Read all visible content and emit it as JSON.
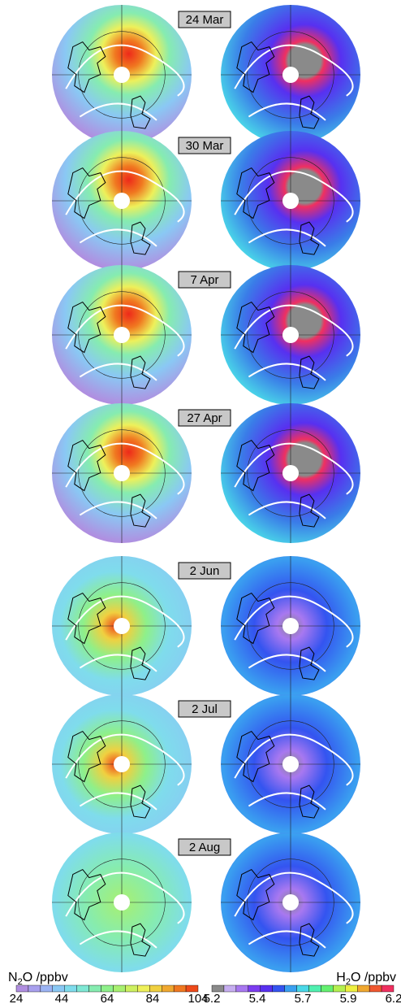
{
  "panels": [
    {
      "date": "24 Mar",
      "n2o_peak": "high",
      "h2o_peak": "high"
    },
    {
      "date": "30 Mar",
      "n2o_peak": "high",
      "h2o_peak": "high"
    },
    {
      "date": "7 Apr",
      "n2o_peak": "high",
      "h2o_peak": "high"
    },
    {
      "date": "27 Apr",
      "n2o_peak": "high",
      "h2o_peak": "high"
    },
    {
      "date": "2 Jun",
      "n2o_peak": "moderate",
      "h2o_peak": "low"
    },
    {
      "date": "2 Jul",
      "n2o_peak": "moderate",
      "h2o_peak": "low"
    },
    {
      "date": "2 Aug",
      "n2o_peak": "low",
      "h2o_peak": "low"
    }
  ],
  "colorbars": {
    "n2o": {
      "title_main": "N",
      "title_sub": "2",
      "title_rest": "O /ppbv",
      "ticks": [
        "24",
        "44",
        "64",
        "84",
        "104"
      ],
      "colors": [
        "#b08ee0",
        "#a9a0ee",
        "#9cb4f4",
        "#8ac8f4",
        "#7fdcec",
        "#7fe8d4",
        "#86ecb0",
        "#8ef08a",
        "#a8f070",
        "#cdf060",
        "#eef05a",
        "#f0d040",
        "#f0a830",
        "#f07820",
        "#ee4a1a"
      ]
    },
    "h2o": {
      "title_main": "H",
      "title_sub": "2",
      "title_rest": "O /ppbv",
      "ticks": [
        "5.2",
        "5.4",
        "5.7",
        "5.9",
        "6.2"
      ],
      "colors": [
        "#8a8a8a",
        "#c6aef0",
        "#a878f0",
        "#7c3cf0",
        "#5830f0",
        "#3454f0",
        "#3aa0f0",
        "#4ad8e8",
        "#50f0b0",
        "#64f070",
        "#b4f050",
        "#eef040",
        "#f0a830",
        "#f05830",
        "#f03060"
      ]
    }
  },
  "colors": {
    "ocean_n2o": "#8ad6f0",
    "ocean_h2o": "#4060e8",
    "contour": "#ffffff",
    "coast": "#000000",
    "label_box": "#c8c8c8"
  }
}
